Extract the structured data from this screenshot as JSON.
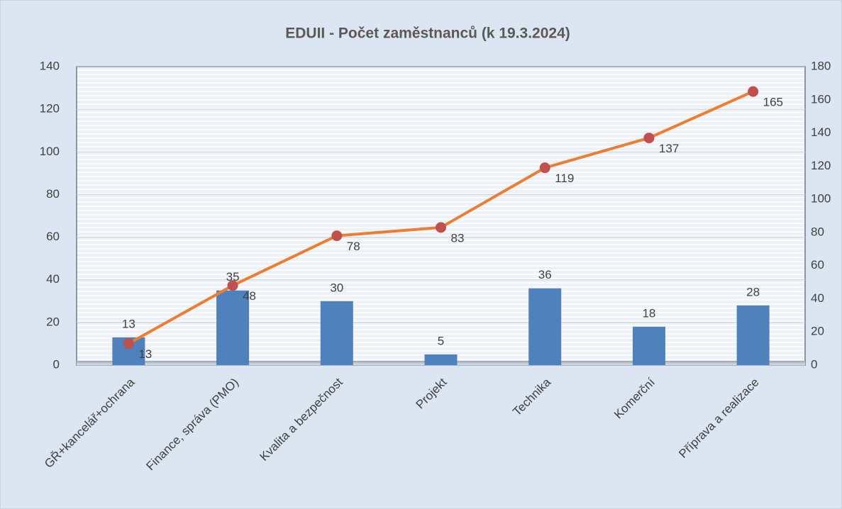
{
  "chart_data": {
    "type": "bar",
    "title": "EDUII - Počet zaměstnanců (k 19.3.2024)",
    "categories": [
      "GŘ+kancelář+ochrana",
      "Finance, správa (PMO)",
      "Kvalita a bezpečnost",
      "Projekt",
      "Technika",
      "Komerční",
      "Příprava a realizace"
    ],
    "series": [
      {
        "color": "#4f81bd",
        "values": [
          13,
          35,
          30,
          5,
          36,
          18,
          28
        ]
      },
      {
        "type": "line",
        "axis": "y2",
        "color": "#ed7d31",
        "marker_color": "#c0504d",
        "values": [
          13,
          48,
          78,
          83,
          119,
          137,
          165
        ]
      }
    ],
    "ylim": [
      0,
      140
    ],
    "yticks": [
      0,
      20,
      40,
      60,
      80,
      100,
      120,
      140
    ],
    "y2lim": [
      0,
      180
    ],
    "y2ticks": [
      0,
      20,
      40,
      60,
      80,
      100,
      120,
      140,
      160,
      180
    ],
    "grid": true
  }
}
